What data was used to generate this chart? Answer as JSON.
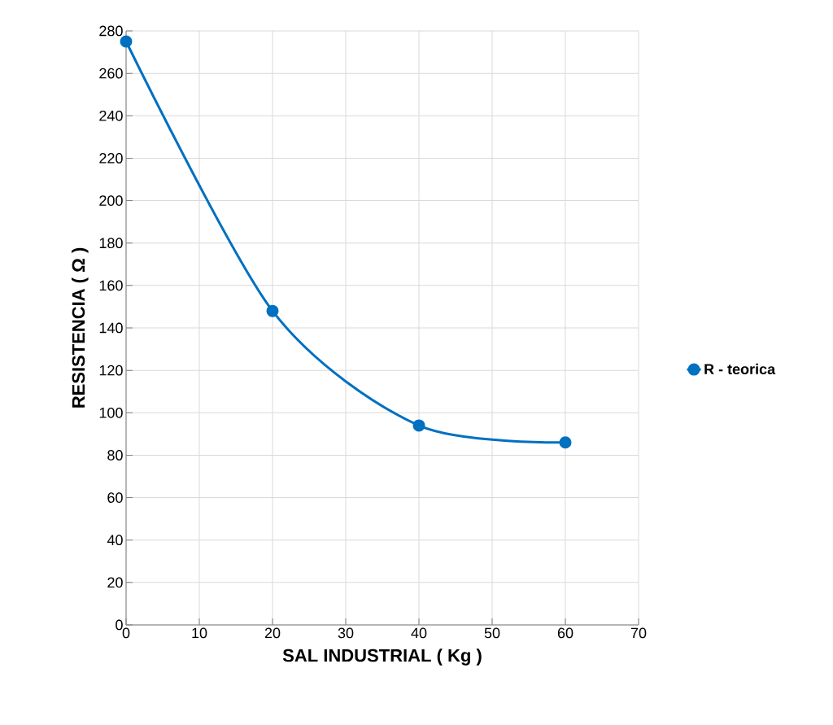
{
  "chart_data": {
    "type": "line",
    "xlabel": "SAL INDUSTRIAL  ( Kg )",
    "ylabel": "RESISTENCIA  ( Ω )",
    "x": [
      0,
      20,
      40,
      60
    ],
    "series": [
      {
        "name": "R - teorica",
        "color": "#0070c0",
        "values": [
          275,
          148,
          94,
          86
        ]
      }
    ],
    "xlim": [
      0,
      70
    ],
    "ylim": [
      0,
      280
    ],
    "xticks": [
      0,
      10,
      20,
      30,
      40,
      50,
      60,
      70
    ],
    "yticks": [
      0,
      20,
      40,
      60,
      80,
      100,
      120,
      140,
      160,
      180,
      200,
      220,
      240,
      260,
      280
    ],
    "grid": true,
    "legend": "right",
    "marker": "circle",
    "line_style": "solid"
  }
}
